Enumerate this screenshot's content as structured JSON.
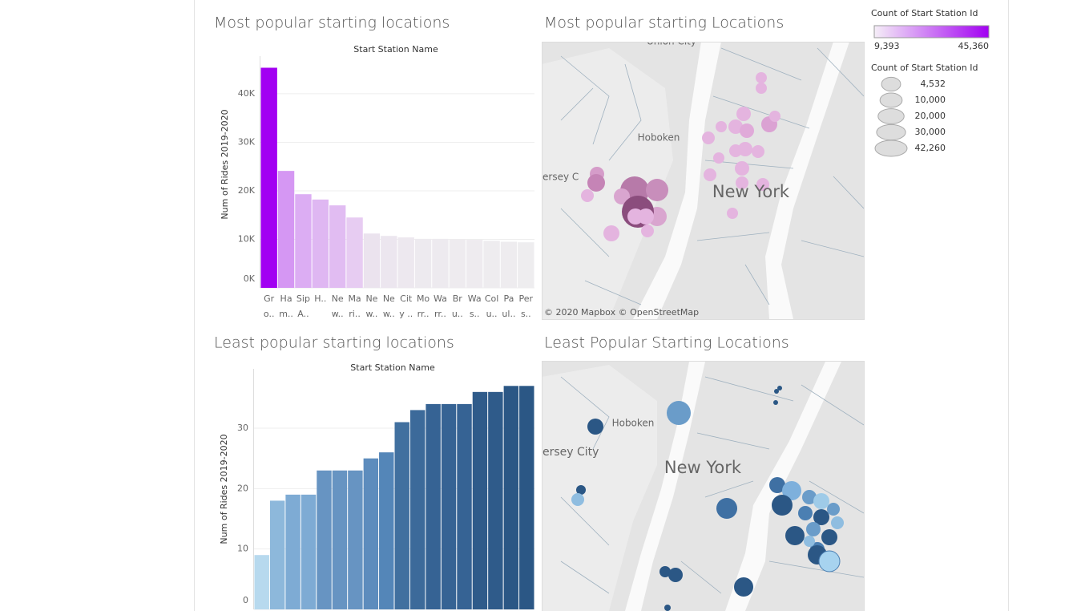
{
  "chart_data": [
    {
      "type": "bar",
      "title": "Most popular starting locations",
      "header": "Start Station Name",
      "ylabel": "Num of Rides 2019-2020",
      "categories": [
        "Gr\no..",
        "Ha\nm..",
        "Sip\nA..",
        "H..",
        "Ne\nw..",
        "Ma\nri..",
        "Ne\nw..",
        "Ne\nw..",
        "Cit\ny ..",
        "Mo\nrr..",
        "Wa\nrr..",
        "Br\nu..",
        "Wa\ns..",
        "Col\nu..",
        "Pa\nul..",
        "Per\ns.."
      ],
      "values": [
        45360,
        24100,
        19300,
        18200,
        17000,
        14500,
        11200,
        10700,
        10400,
        10100,
        10100,
        10000,
        9900,
        9700,
        9500,
        9393
      ],
      "colors": [
        "#a200f2",
        "#d597f3",
        "#dcadf3",
        "#dfb7f2",
        "#e1bcf2",
        "#e7ccf2",
        "#ebe3ee",
        "#ece6ef",
        "#ede8ef",
        "#edeaef",
        "#edeaef",
        "#eeebef",
        "#eeebef",
        "#eeecef",
        "#eeecef",
        "#eeedef"
      ],
      "ylim": [
        0,
        46100
      ],
      "yticks": [
        {
          "value": 0,
          "label": "0K"
        },
        {
          "value": 10000,
          "label": "10K"
        },
        {
          "value": 20000,
          "label": "20K"
        },
        {
          "value": 30000,
          "label": "30K"
        },
        {
          "value": 40000,
          "label": "40K"
        }
      ],
      "grid": true
    },
    {
      "type": "bar",
      "title": "Least popular starting locations",
      "header": "Start Station Name",
      "ylabel": "Num of Rides 2019-2020",
      "categories": [
        null,
        null,
        null,
        null,
        null,
        null,
        null,
        null,
        null,
        null,
        null,
        null,
        null,
        null,
        null,
        null,
        null,
        null
      ],
      "values": [
        9,
        18,
        19,
        19,
        23,
        23,
        23,
        25,
        26,
        31,
        33,
        34,
        34,
        34,
        36,
        36,
        37,
        37
      ],
      "colors": [
        "#b7d9ee",
        "#8db8db",
        "#7eabd4",
        "#7eabd4",
        "#6794c2",
        "#6794c2",
        "#6794c2",
        "#5d8cbd",
        "#5486b8",
        "#41709f",
        "#3c6a9a",
        "#366394",
        "#366394",
        "#366394",
        "#2f5b8a",
        "#2f5b8a",
        "#2b5785",
        "#2b5785"
      ],
      "ylim": [
        0,
        38.5
      ],
      "yticks": [
        0,
        10,
        20,
        30
      ],
      "grid": true
    }
  ],
  "maps": [
    {
      "title": "Most popular starting Locations",
      "labels": [
        "Union City",
        "Hoboken",
        "ersey C",
        "New York"
      ],
      "attribution": "© 2020 Mapbox © OpenStreetMap"
    },
    {
      "title": "Least Popular Starting Locations",
      "labels": [
        "Hoboken",
        "ersey City",
        "New York"
      ]
    }
  ],
  "legends": {
    "color": {
      "title": "Count of Start Station Id",
      "min": {
        "value": 9393,
        "label": "9,393"
      },
      "max": {
        "value": 45360,
        "label": "45,360"
      }
    },
    "size": {
      "title": "Count of Start Station Id",
      "items": [
        {
          "value": 4532,
          "label": "4,532"
        },
        {
          "value": 10000,
          "label": "10,000"
        },
        {
          "value": 20000,
          "label": "20,000"
        },
        {
          "value": 30000,
          "label": "30,000"
        },
        {
          "value": 42260,
          "label": "42,260"
        }
      ]
    }
  }
}
